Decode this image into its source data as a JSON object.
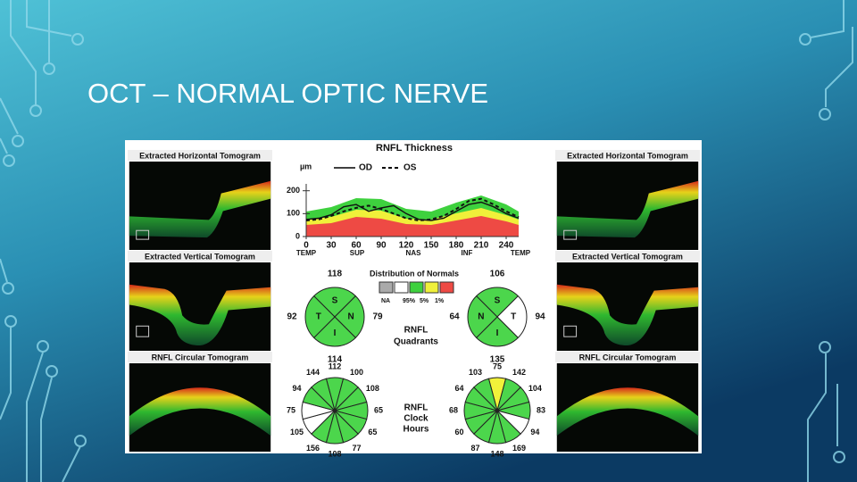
{
  "slide": {
    "title": "OCT – NORMAL OPTIC NERVE"
  },
  "report": {
    "left_tomograms": [
      "Extracted Horizontal Tomogram",
      "Extracted Vertical Tomogram",
      "RNFL Circular Tomogram"
    ],
    "right_tomograms": [
      "Extracted Horizontal Tomogram",
      "Extracted Vertical Tomogram",
      "RNFL Circular Tomogram"
    ],
    "thickness": {
      "title": "RNFL Thickness",
      "unit": "µm",
      "legend": [
        "OD",
        "OS"
      ],
      "x": [
        0,
        15,
        30,
        45,
        60,
        75,
        90,
        105,
        120,
        135,
        150,
        165,
        180,
        195,
        210,
        225,
        240,
        255
      ],
      "od": [
        75,
        80,
        95,
        130,
        140,
        110,
        125,
        135,
        100,
        75,
        70,
        80,
        110,
        140,
        150,
        130,
        100,
        80
      ],
      "os": [
        70,
        75,
        90,
        110,
        125,
        135,
        120,
        100,
        80,
        70,
        75,
        90,
        120,
        155,
        165,
        140,
        110,
        85
      ],
      "xlim": [
        0,
        255
      ],
      "ylim": [
        0,
        230
      ],
      "xticks": [
        0,
        30,
        60,
        90,
        120,
        150,
        180,
        210,
        240
      ],
      "yticks": [
        0,
        100,
        200
      ],
      "regions": [
        "TEMP",
        "SUP",
        "NAS",
        "INF",
        "TEMP"
      ]
    },
    "distribution": {
      "title": "Distribution of Normals",
      "labels": [
        "NA",
        "95%",
        "5%",
        "1%"
      ]
    },
    "quadrants": {
      "title": [
        "RNFL",
        "Quadrants"
      ],
      "od": {
        "labels": [
          "S",
          "N",
          "I",
          "T"
        ],
        "values": [
          118,
          79,
          114,
          92
        ],
        "colors": [
          "#4cd64c",
          "#4cd64c",
          "#4cd64c",
          "#4cd64c"
        ]
      },
      "os": {
        "labels": [
          "S",
          "T",
          "I",
          "N"
        ],
        "values": [
          106,
          94,
          135,
          64
        ],
        "colors": [
          "#4cd64c",
          "#ffffff",
          "#4cd64c",
          "#4cd64c"
        ]
      }
    },
    "clock_hours": {
      "title": [
        "RNFL",
        "Clock",
        "Hours"
      ],
      "od": {
        "values": [
          112,
          100,
          108,
          65,
          65,
          77,
          108,
          156,
          105,
          75,
          94,
          144
        ],
        "colors": [
          "#4cd64c",
          "#4cd64c",
          "#4cd64c",
          "#4cd64c",
          "#4cd64c",
          "#4cd64c",
          "#4cd64c",
          "#4cd64c",
          "#ffffff",
          "#ffffff",
          "#4cd64c",
          "#4cd64c"
        ]
      },
      "os": {
        "values": [
          75,
          142,
          104,
          83,
          94,
          169,
          148,
          87,
          60,
          68,
          64,
          103
        ],
        "colors": [
          "#f2f23a",
          "#4cd64c",
          "#4cd64c",
          "#4cd64c",
          "#ffffff",
          "#4cd64c",
          "#4cd64c",
          "#4cd64c",
          "#4cd64c",
          "#4cd64c",
          "#4cd64c",
          "#4cd64c"
        ]
      }
    }
  }
}
